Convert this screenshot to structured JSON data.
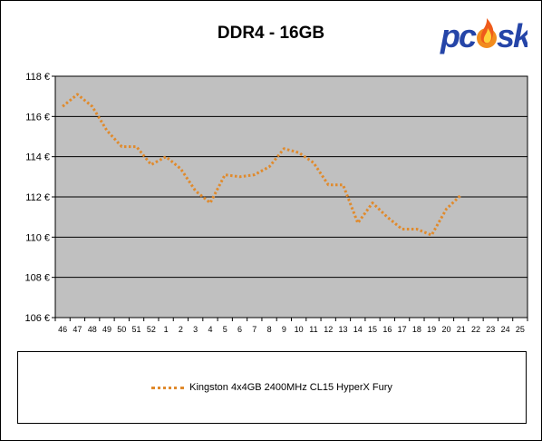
{
  "chart_data": {
    "type": "line",
    "title": "DDR4 - 16GB",
    "xlabel": "",
    "ylabel": "",
    "categories": [
      "46",
      "47",
      "48",
      "49",
      "50",
      "51",
      "52",
      "1",
      "2",
      "3",
      "4",
      "5",
      "6",
      "7",
      "8",
      "9",
      "10",
      "11",
      "12",
      "13",
      "14",
      "15",
      "16",
      "17",
      "18",
      "19",
      "20",
      "21",
      "22",
      "23",
      "24",
      "25"
    ],
    "y_tick_labels": [
      "106 €",
      "108 €",
      "110 €",
      "112 €",
      "114 €",
      "116 €",
      "118 €"
    ],
    "ylim": [
      106,
      118
    ],
    "grid": true,
    "legend_position": "bottom",
    "series": [
      {
        "name": "Kingston 4x4GB 2400MHz CL15 HyperX Fury",
        "color": "#e08a2c",
        "values": [
          116.5,
          117.1,
          116.5,
          115.3,
          114.5,
          114.5,
          113.6,
          114.0,
          113.4,
          112.3,
          111.7,
          113.1,
          113.0,
          113.1,
          113.5,
          114.4,
          114.2,
          113.7,
          112.6,
          112.6,
          110.7,
          111.7,
          111.0,
          110.4,
          110.4,
          110.1,
          111.4,
          112.1,
          null,
          null,
          null,
          null
        ]
      }
    ]
  },
  "logo": {
    "text": "pcosk",
    "colors": {
      "text": "#2545a8",
      "flame": "#f28c1e",
      "flame_inner": "#ffd23a"
    }
  },
  "colors": {
    "plot_bg": "#c0c0c0",
    "grid": "#000000",
    "axis": "#000000",
    "series": "#e08a2c"
  }
}
